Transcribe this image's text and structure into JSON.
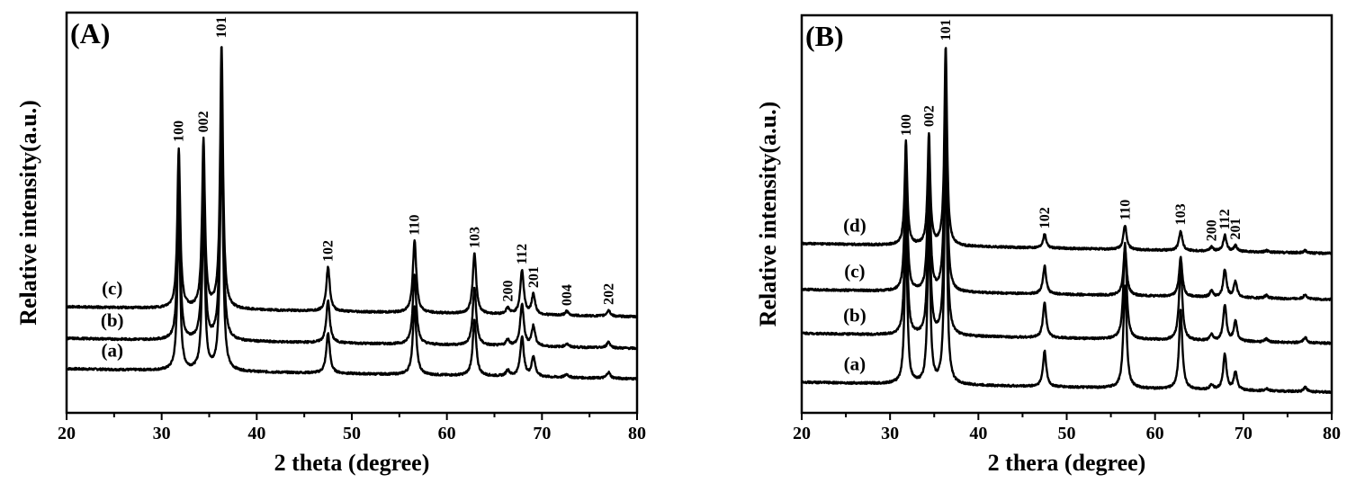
{
  "chart_data": [
    {
      "type": "line",
      "panel_label": "(A)",
      "xlabel": "2 theta (degree)",
      "ylabel": "Relative intensity(a.u.)",
      "xlim": [
        20,
        80
      ],
      "ylim": [
        0,
        100
      ],
      "xticks": [
        "20",
        "30",
        "40",
        "50",
        "60",
        "70",
        "80"
      ],
      "grid": false,
      "peak_positions": [
        31.8,
        34.4,
        36.3,
        47.5,
        56.6,
        62.9,
        66.4,
        67.9,
        69.1,
        72.6,
        77.0
      ],
      "peak_labels": [
        "100",
        "002",
        "101",
        "102",
        "110",
        "103",
        "200",
        "112",
        "201",
        "004",
        "202"
      ],
      "series": [
        {
          "name": "(a)",
          "baseline": 11,
          "peak_heights": [
            38,
            40,
            62,
            10,
            17,
            14,
            1.5,
            10,
            5,
            0.8,
            1.5
          ]
        },
        {
          "name": "(b)",
          "baseline": 18.6,
          "peak_heights": [
            39,
            41,
            64,
            10.5,
            17.5,
            14.5,
            1.5,
            10.5,
            5,
            0.8,
            1.5
          ]
        },
        {
          "name": "(c)",
          "baseline": 26.5,
          "peak_heights": [
            40,
            42,
            66,
            11,
            18,
            15,
            1.5,
            11,
            5,
            1,
            1.5
          ]
        }
      ]
    },
    {
      "type": "line",
      "panel_label": "(B)",
      "xlabel": "2 thera (degree)",
      "ylabel": "Relative intensity(a.u.)",
      "xlim": [
        20,
        80
      ],
      "ylim": [
        0,
        100
      ],
      "xticks": [
        "20",
        "30",
        "40",
        "50",
        "60",
        "70",
        "80"
      ],
      "grid": false,
      "peak_positions": [
        31.8,
        34.4,
        36.3,
        47.5,
        56.6,
        62.9,
        66.4,
        67.9,
        69.1,
        72.6,
        77.0
      ],
      "peak_labels": [
        "100",
        "002",
        "101",
        "102",
        "110",
        "103",
        "200",
        "112",
        "201",
        "",
        ""
      ],
      "series": [
        {
          "name": "(a)",
          "baseline": 7.7,
          "peak_heights": [
            40,
            42,
            62,
            9,
            26,
            20,
            1.2,
            9,
            4.5,
            0.6,
            1.2
          ]
        },
        {
          "name": "(b)",
          "baseline": 20,
          "peak_heights": [
            38,
            40,
            60,
            9,
            24,
            19,
            1.5,
            9,
            5,
            0.8,
            1.3
          ]
        },
        {
          "name": "(c)",
          "baseline": 31,
          "peak_heights": [
            34,
            36,
            56,
            7,
            12,
            10,
            1.5,
            7,
            4,
            0.8,
            1.2
          ]
        },
        {
          "name": "(d)",
          "baseline": 42.6,
          "peak_heights": [
            26,
            28,
            50,
            3.5,
            6,
            5,
            1,
            4,
            1.5,
            0.4,
            0.6
          ]
        }
      ]
    }
  ]
}
